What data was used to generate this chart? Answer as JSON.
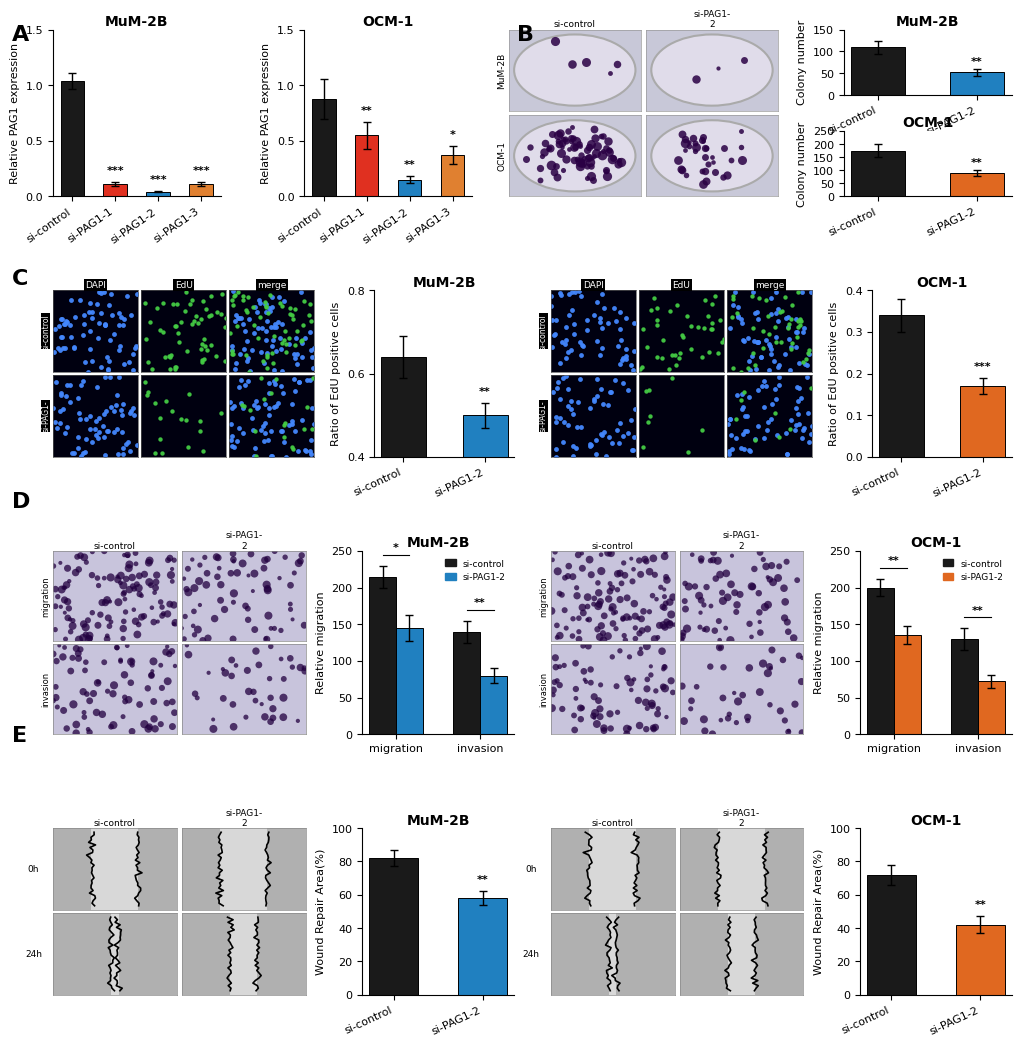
{
  "panel_A_mum2b": {
    "title": "MuM-2B",
    "ylabel": "Relative PAG1 expression",
    "categories": [
      "si-control",
      "si-PAG1-1",
      "si-PAG1-2",
      "si-PAG1-3"
    ],
    "values": [
      1.04,
      0.11,
      0.04,
      0.11
    ],
    "errors": [
      0.07,
      0.015,
      0.005,
      0.015
    ],
    "colors": [
      "#1a1a1a",
      "#e03020",
      "#2080c0",
      "#e08030"
    ],
    "significance": [
      "",
      "***",
      "***",
      "***"
    ],
    "ylim": [
      0.0,
      1.5
    ],
    "yticks": [
      0.0,
      0.5,
      1.0,
      1.5
    ]
  },
  "panel_A_ocm1": {
    "title": "OCM-1",
    "ylabel": "Relative PAG1 expression",
    "categories": [
      "si-control",
      "si-PAG1-1",
      "si-PAG1-2",
      "si-PAG1-3"
    ],
    "values": [
      0.88,
      0.55,
      0.15,
      0.37
    ],
    "errors": [
      0.18,
      0.12,
      0.03,
      0.08
    ],
    "colors": [
      "#1a1a1a",
      "#e03020",
      "#2080c0",
      "#e08030"
    ],
    "significance": [
      "",
      "**",
      "**",
      "*"
    ],
    "ylim": [
      0.0,
      1.5
    ],
    "yticks": [
      0.0,
      0.5,
      1.0,
      1.5
    ]
  },
  "panel_B_mum2b": {
    "title": "MuM-2B",
    "ylabel": "Colony number",
    "categories": [
      "si-control",
      "si-PAG1-2"
    ],
    "values": [
      110,
      52
    ],
    "errors": [
      15,
      8
    ],
    "colors": [
      "#1a1a1a",
      "#2080c0"
    ],
    "significance": [
      "",
      "**"
    ],
    "ylim": [
      0,
      150
    ],
    "yticks": [
      0,
      50,
      100,
      150
    ]
  },
  "panel_B_ocm1": {
    "title": "OCM-1",
    "ylabel": "Colony number",
    "categories": [
      "si-control",
      "si-PAG1-2"
    ],
    "values": [
      175,
      90
    ],
    "errors": [
      25,
      12
    ],
    "colors": [
      "#1a1a1a",
      "#e06820"
    ],
    "significance": [
      "",
      "**"
    ],
    "ylim": [
      0,
      250
    ],
    "yticks": [
      0,
      50,
      100,
      150,
      200,
      250
    ]
  },
  "panel_C_mum2b": {
    "title": "MuM-2B",
    "ylabel": "Ratio of EdU positive cells",
    "categories": [
      "si-control",
      "si-PAG1-2"
    ],
    "values": [
      0.64,
      0.5
    ],
    "errors": [
      0.05,
      0.03
    ],
    "colors": [
      "#1a1a1a",
      "#2080c0"
    ],
    "significance": [
      "",
      "**"
    ],
    "ylim": [
      0.4,
      0.8
    ],
    "yticks": [
      0.4,
      0.6,
      0.8
    ]
  },
  "panel_C_ocm1": {
    "title": "OCM-1",
    "ylabel": "Ratio of EdU positive cells",
    "categories": [
      "si-control",
      "si-PAG1-2"
    ],
    "values": [
      0.34,
      0.17
    ],
    "errors": [
      0.04,
      0.02
    ],
    "colors": [
      "#1a1a1a",
      "#e06820"
    ],
    "significance": [
      "",
      "***"
    ],
    "ylim": [
      0.0,
      0.4
    ],
    "yticks": [
      0.0,
      0.1,
      0.2,
      0.3,
      0.4
    ]
  },
  "panel_D_mum2b": {
    "title": "MuM-2B",
    "ylabel": "Relative migration",
    "categories": [
      "migration",
      "invasion"
    ],
    "groups": [
      "si-control",
      "si-PAG1-2"
    ],
    "values": [
      [
        215,
        140
      ],
      [
        145,
        80
      ]
    ],
    "errors": [
      [
        15,
        15
      ],
      [
        18,
        10
      ]
    ],
    "colors": [
      "#1a1a1a",
      "#2080c0"
    ],
    "significance": [
      "*",
      "**"
    ],
    "ylim": [
      0,
      250
    ],
    "yticks": [
      0,
      50,
      100,
      150,
      200,
      250
    ]
  },
  "panel_D_ocm1": {
    "title": "OCM-1",
    "ylabel": "Relative migration",
    "categories": [
      "migration",
      "invasion"
    ],
    "groups": [
      "si-control",
      "si-PAG1-2"
    ],
    "values": [
      [
        200,
        130
      ],
      [
        135,
        72
      ]
    ],
    "errors": [
      [
        12,
        15
      ],
      [
        12,
        9
      ]
    ],
    "colors": [
      "#1a1a1a",
      "#e06820"
    ],
    "significance": [
      "**",
      "**"
    ],
    "ylim": [
      0,
      250
    ],
    "yticks": [
      0,
      50,
      100,
      150,
      200,
      250
    ]
  },
  "panel_E_mum2b": {
    "title": "MuM-2B",
    "ylabel": "Wound Repair Area(%)",
    "categories": [
      "si-control",
      "si-PAG1-2"
    ],
    "values": [
      82,
      58
    ],
    "errors": [
      5,
      4
    ],
    "colors": [
      "#1a1a1a",
      "#2080c0"
    ],
    "significance": [
      "",
      "**"
    ],
    "ylim": [
      0,
      100
    ],
    "yticks": [
      0,
      20,
      40,
      60,
      80,
      100
    ]
  },
  "panel_E_ocm1": {
    "title": "OCM-1",
    "ylabel": "Wound Repair Area(%)",
    "categories": [
      "si-control",
      "si-PAG1-2"
    ],
    "values": [
      72,
      42
    ],
    "errors": [
      6,
      5
    ],
    "colors": [
      "#1a1a1a",
      "#e06820"
    ],
    "significance": [
      "",
      "**"
    ],
    "ylim": [
      0,
      100
    ],
    "yticks": [
      0,
      20,
      40,
      60,
      80,
      100
    ]
  },
  "tick_fontsize": 8,
  "title_fontsize": 10,
  "sig_fontsize": 8,
  "panel_label_fontsize": 16,
  "ylabel_fontsize": 8
}
